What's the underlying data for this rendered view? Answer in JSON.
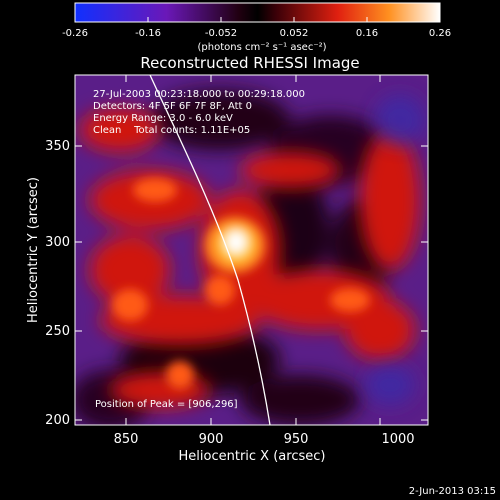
{
  "colorbar": {
    "tick_labels": [
      "-0.26",
      "-0.16",
      "-0.052",
      "0.052",
      "0.16",
      "0.26"
    ],
    "units": "(photons cm⁻² s⁻¹ asec⁻²)",
    "range": [
      -0.26,
      0.26
    ],
    "colormap": "rainbow-like (blue-purple-red-orange-yellow-white)"
  },
  "image": {
    "title": "Reconstructed RHESSI Image",
    "info_lines": [
      "27-Jul-2003 00:23:18.000 to 00:29:18.000",
      "Detectors: 4F 5F 6F 7F 8F, Att 0",
      "Energy Range: 3.0 - 6.0 keV",
      "Clean    Total counts: 1.11E+05"
    ],
    "peak_text": "Position of Peak = [906,296]",
    "xlabel": "Heliocentric X (arcsec)",
    "ylabel": "Heliocentric Y (arcsec)",
    "x_ticks": [
      "850",
      "900",
      "950",
      "1000"
    ],
    "y_ticks": [
      "200",
      "250",
      "300",
      "350"
    ],
    "x_range": [
      816,
      1026
    ],
    "y_range": [
      197,
      393
    ],
    "peak": {
      "x": 906,
      "y": 296
    }
  },
  "footer": {
    "date": "2-Jun-2013 03:15"
  }
}
